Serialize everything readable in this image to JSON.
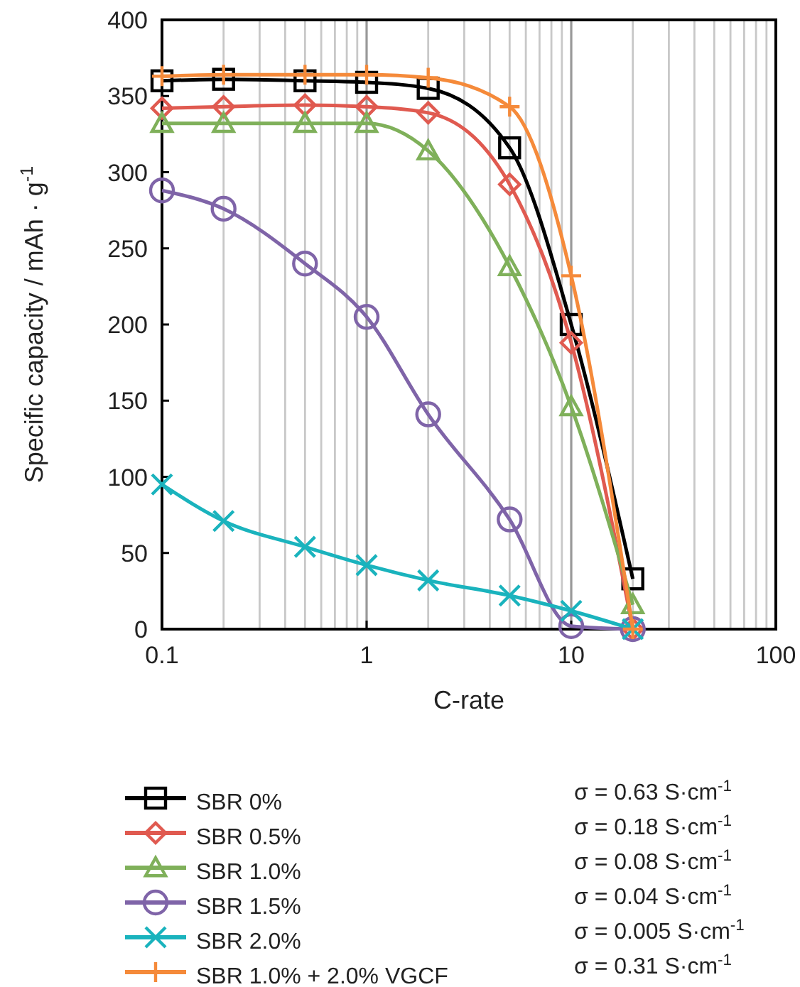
{
  "chart_data": {
    "type": "line",
    "xlabel": "C-rate",
    "ylabel": "Specific capacity / mAh · g$^{-1}$",
    "x": [
      0.1,
      0.2,
      0.5,
      1,
      2,
      5,
      10,
      20
    ],
    "series": [
      {
        "name": "SBR 0%",
        "color": "#000000",
        "marker": "square",
        "values": [
          360,
          361,
          360,
          359,
          355,
          316,
          200,
          33
        ]
      },
      {
        "name": "SBR 0.5%",
        "color": "#e05a50",
        "marker": "diamond",
        "values": [
          342,
          343,
          344,
          343,
          339,
          292,
          188,
          0
        ]
      },
      {
        "name": "SBR 1.0%",
        "color": "#7fb05a",
        "marker": "triangle",
        "values": [
          332,
          332,
          332,
          332,
          314,
          238,
          146,
          16
        ]
      },
      {
        "name": "SBR 1.5%",
        "color": "#7f64a8",
        "marker": "circle",
        "values": [
          288,
          276,
          240,
          205,
          141,
          72,
          2,
          0
        ]
      },
      {
        "name": "SBR 2.0%",
        "color": "#1ab3bd",
        "marker": "cross",
        "values": [
          95,
          71,
          54,
          42,
          32,
          22,
          12,
          0
        ]
      },
      {
        "name": "SBR 1.0% + 2.0% VGCF",
        "color": "#f58a3a",
        "marker": "plus",
        "values": [
          363,
          364,
          364,
          364,
          362,
          343,
          232,
          0
        ]
      }
    ],
    "log": "x",
    "xlim": [
      0.1,
      100
    ],
    "xticks": [
      0.1,
      {
        "value": 0.2,
        "label": null
      },
      {
        "value": 0.3,
        "label": null
      },
      {
        "value": 0.4,
        "label": null
      },
      {
        "value": 0.5,
        "label": null
      },
      {
        "value": 0.6,
        "label": null
      },
      {
        "value": 0.7,
        "label": null
      },
      {
        "value": 0.8,
        "label": null
      },
      {
        "value": 0.9,
        "label": null
      },
      1,
      {
        "value": 2,
        "label": null
      },
      {
        "value": 3,
        "label": null
      },
      {
        "value": 4,
        "label": null
      },
      {
        "value": 5,
        "label": null
      },
      {
        "value": 6,
        "label": null
      },
      {
        "value": 7,
        "label": null
      },
      {
        "value": 8,
        "label": null
      },
      {
        "value": 9,
        "label": null
      },
      10,
      {
        "value": 20,
        "label": null
      },
      {
        "value": 30,
        "label": null
      },
      {
        "value": 40,
        "label": null
      },
      {
        "value": 50,
        "label": null
      },
      {
        "value": 60,
        "label": null
      },
      {
        "value": 70,
        "label": null
      },
      {
        "value": 80,
        "label": null
      },
      {
        "value": 90,
        "label": null
      },
      100
    ],
    "ylim": [
      0,
      400
    ],
    "yticks": [
      0,
      50,
      100,
      150,
      200,
      250,
      300,
      350,
      400
    ],
    "grid": "x",
    "legend": "bottom",
    "annotations": [
      "σ = 0.63 S·cm$^{-1}$",
      "σ = 0.18 S·cm$^{-1}$",
      "σ = 0.08 S·cm$^{-1}$",
      "σ = 0.04 S·cm$^{-1}$",
      "σ = 0.005 S·cm$^{-1}$",
      "σ = 0.31 S·cm$^{-1}$"
    ]
  }
}
